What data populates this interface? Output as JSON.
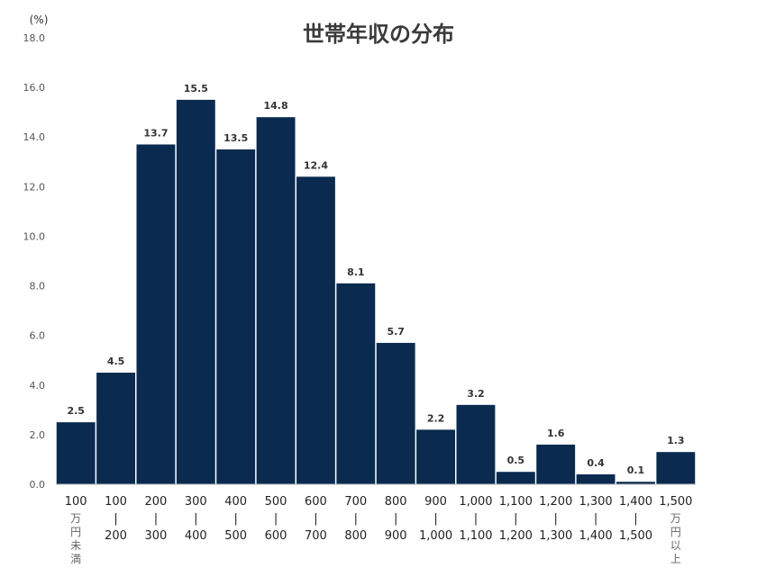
{
  "chart_data": {
    "type": "bar",
    "title": "世帯年収の分布",
    "ylabel": "(%)",
    "ylim": [
      0,
      18
    ],
    "yticks": [
      "0.0",
      "2.0",
      "4.0",
      "6.0",
      "8.0",
      "10.0",
      "12.0",
      "14.0",
      "16.0",
      "18.0"
    ],
    "grid": false,
    "bar_color": "#0a2a4f",
    "categories": [
      [
        "100",
        "万",
        "円",
        "未",
        "満"
      ],
      [
        "100",
        "|",
        "200"
      ],
      [
        "200",
        "|",
        "300"
      ],
      [
        "300",
        "|",
        "400"
      ],
      [
        "400",
        "|",
        "500"
      ],
      [
        "500",
        "|",
        "600"
      ],
      [
        "600",
        "|",
        "700"
      ],
      [
        "700",
        "|",
        "800"
      ],
      [
        "800",
        "|",
        "900"
      ],
      [
        "900",
        "|",
        "1,000"
      ],
      [
        "1,000",
        "|",
        "1,100"
      ],
      [
        "1,100",
        "|",
        "1,200"
      ],
      [
        "1,200",
        "|",
        "1,300"
      ],
      [
        "1,300",
        "|",
        "1,400"
      ],
      [
        "1,400",
        "|",
        "1,500"
      ],
      [
        "1,500",
        "万",
        "円",
        "以",
        "上"
      ]
    ],
    "values": [
      2.5,
      4.5,
      13.7,
      15.5,
      13.5,
      14.8,
      12.4,
      8.1,
      5.7,
      2.2,
      3.2,
      0.5,
      1.6,
      0.4,
      0.1,
      1.3
    ],
    "value_labels": [
      "2.5",
      "4.5",
      "13.7",
      "15.5",
      "13.5",
      "14.8",
      "12.4",
      "8.1",
      "5.7",
      "2.2",
      "3.2",
      "0.5",
      "1.6",
      "0.4",
      "0.1",
      "1.3"
    ]
  }
}
